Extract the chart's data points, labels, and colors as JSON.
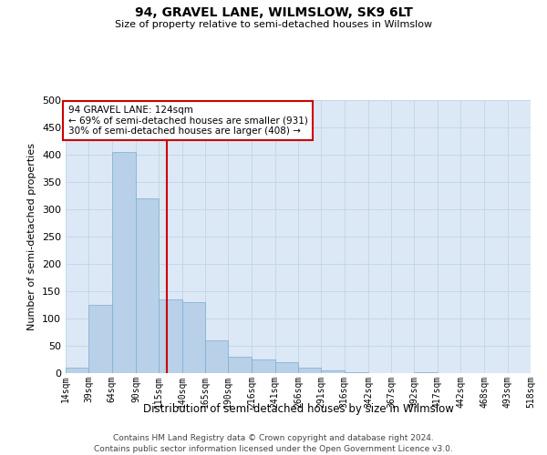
{
  "title": "94, GRAVEL LANE, WILMSLOW, SK9 6LT",
  "subtitle": "Size of property relative to semi-detached houses in Wilmslow",
  "xlabel": "Distribution of semi-detached houses by size in Wilmslow",
  "ylabel": "Number of semi-detached properties",
  "footer_line1": "Contains HM Land Registry data © Crown copyright and database right 2024.",
  "footer_line2": "Contains public sector information licensed under the Open Government Licence v3.0.",
  "bar_color": "#b8d0e8",
  "bar_edge_color": "#7aaed0",
  "bg_color": "#dce8f5",
  "grid_color": "#c0d4e8",
  "annotation_box_color": "#ffffff",
  "annotation_border_color": "#cc0000",
  "vline_color": "#cc0000",
  "annotation_text_line1": "94 GRAVEL LANE: 124sqm",
  "annotation_text_line2": "← 69% of semi-detached houses are smaller (931)",
  "annotation_text_line3": "30% of semi-detached houses are larger (408) →",
  "property_size": 124,
  "bin_edges": [
    14,
    39,
    64,
    90,
    115,
    140,
    165,
    190,
    216,
    241,
    266,
    291,
    316,
    342,
    367,
    392,
    417,
    442,
    468,
    493,
    518
  ],
  "bin_labels": [
    "14sqm",
    "39sqm",
    "64sqm",
    "90sqm",
    "115sqm",
    "140sqm",
    "165sqm",
    "190sqm",
    "216sqm",
    "241sqm",
    "266sqm",
    "291sqm",
    "316sqm",
    "342sqm",
    "367sqm",
    "392sqm",
    "417sqm",
    "442sqm",
    "468sqm",
    "493sqm",
    "518sqm"
  ],
  "bar_heights": [
    10,
    125,
    405,
    320,
    135,
    130,
    60,
    30,
    25,
    20,
    10,
    5,
    1,
    0,
    0,
    1,
    0,
    0,
    0,
    0
  ],
  "ylim": [
    0,
    500
  ],
  "yticks": [
    0,
    50,
    100,
    150,
    200,
    250,
    300,
    350,
    400,
    450,
    500
  ]
}
